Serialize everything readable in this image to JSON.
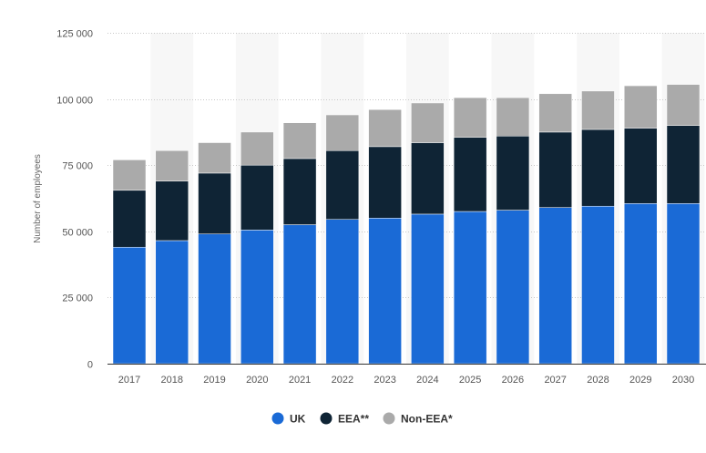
{
  "chart_data": {
    "type": "bar",
    "stacked": true,
    "title": "",
    "xlabel": "",
    "ylabel": "Number of employees",
    "ylim": [
      0,
      125000
    ],
    "yticks": [
      0,
      25000,
      50000,
      75000,
      100000,
      125000
    ],
    "ytick_labels": [
      "0",
      "25 000",
      "50 000",
      "75 000",
      "100 000",
      "125 000"
    ],
    "grid": true,
    "legend_position": "bottom",
    "categories": [
      "2017",
      "2018",
      "2019",
      "2020",
      "2021",
      "2022",
      "2023",
      "2024",
      "2025",
      "2026",
      "2027",
      "2028",
      "2029",
      "2030"
    ],
    "series": [
      {
        "name": "UK",
        "color": "#1a6ad6",
        "values": [
          44000,
          46500,
          49000,
          50500,
          52500,
          54500,
          55000,
          56500,
          57500,
          58000,
          59000,
          59500,
          60500,
          60500
        ]
      },
      {
        "name": "EEA**",
        "color": "#0f2435",
        "values": [
          21500,
          22500,
          23000,
          24500,
          25000,
          26000,
          27000,
          27000,
          28000,
          28000,
          28500,
          29000,
          28500,
          29500
        ]
      },
      {
        "name": "Non-EEA*",
        "color": "#aaaaaa",
        "values": [
          11500,
          11500,
          11500,
          12500,
          13500,
          13500,
          14000,
          15000,
          15000,
          14500,
          14500,
          14500,
          16000,
          15500
        ]
      }
    ]
  }
}
